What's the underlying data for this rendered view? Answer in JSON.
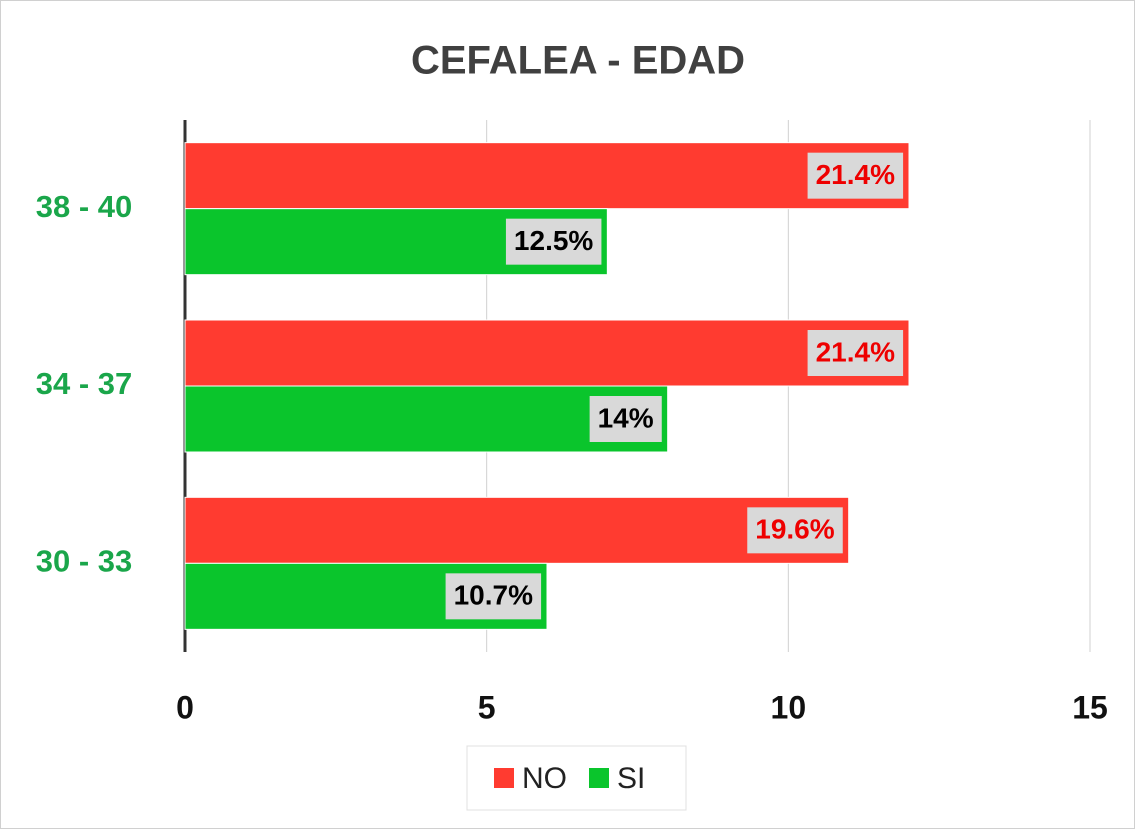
{
  "chart_data": {
    "type": "bar",
    "orientation": "horizontal",
    "title": "CEFALEA -  EDAD",
    "categories": [
      "30 - 33",
      "34 - 37",
      "38 - 40"
    ],
    "series": [
      {
        "name": "NO",
        "color": "#ff3b30",
        "values": [
          11,
          12,
          12
        ],
        "percent_labels": [
          "19.6%",
          "21.4%",
          "21.4%"
        ]
      },
      {
        "name": "SI",
        "color": "#0ac52c",
        "values": [
          6,
          8,
          7
        ],
        "percent_labels": [
          "10.7%",
          "14%",
          "12.5%"
        ]
      }
    ],
    "xlim": [
      0,
      15
    ],
    "xticks": [
      0,
      5,
      10,
      15
    ],
    "grid": true,
    "legend": "bottom"
  }
}
